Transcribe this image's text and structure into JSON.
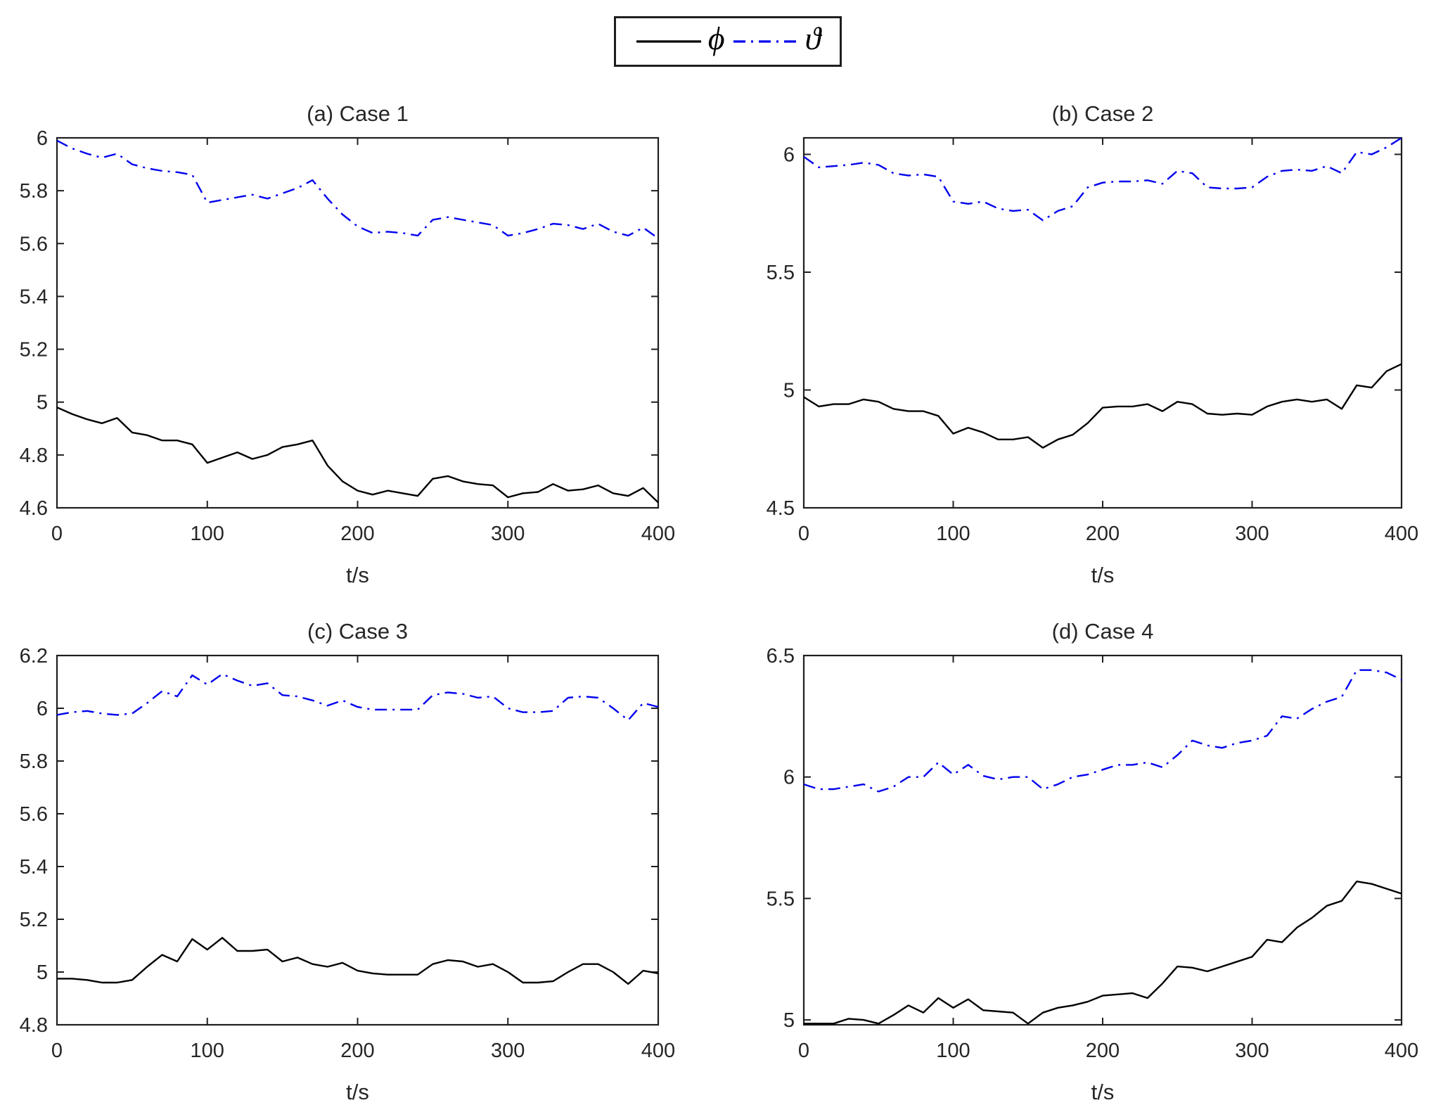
{
  "figure": {
    "kind": "matlab-style multi-panel line figure",
    "background": "#ffffff",
    "axis_color": "#1f1f1f",
    "text_color": "#262626"
  },
  "legend": {
    "phi_label": "ϕ",
    "vartheta_label": "ϑ",
    "phi_color": "#000000",
    "vartheta_color": "#0000ee",
    "phi_style": "solid",
    "vartheta_style": "dash-dot"
  },
  "chart_data": [
    {
      "id": "case1",
      "type": "line",
      "title": "(a) Case 1",
      "xlabel": "t/s",
      "legend_position": "shared-top",
      "grid": false,
      "xlim": [
        0,
        400
      ],
      "ylim": [
        4.6,
        6.0
      ],
      "xticks": [
        "0",
        "100",
        "200",
        "300",
        "400"
      ],
      "xtick_values": [
        0,
        100,
        200,
        300,
        400
      ],
      "yticks": [
        "4.6",
        "4.8",
        "5",
        "5.2",
        "5.4",
        "5.6",
        "5.8",
        "6"
      ],
      "ytick_values": [
        4.6,
        4.8,
        5.0,
        5.2,
        5.4,
        5.6,
        5.8,
        6.0
      ],
      "x": [
        0,
        10,
        20,
        30,
        40,
        50,
        60,
        70,
        80,
        90,
        100,
        110,
        120,
        130,
        140,
        150,
        160,
        170,
        180,
        190,
        200,
        210,
        220,
        230,
        240,
        250,
        260,
        270,
        280,
        290,
        300,
        310,
        320,
        330,
        340,
        350,
        360,
        370,
        380,
        390,
        400
      ],
      "series": [
        {
          "name": "phi",
          "label": "ϕ",
          "color": "#000000",
          "line_style": "solid",
          "values": [
            4.98,
            4.955,
            4.935,
            4.92,
            4.94,
            4.885,
            4.875,
            4.855,
            4.855,
            4.84,
            4.77,
            4.79,
            4.81,
            4.785,
            4.8,
            4.83,
            4.84,
            4.855,
            4.76,
            4.7,
            4.665,
            4.65,
            4.665,
            4.655,
            4.645,
            4.71,
            4.72,
            4.7,
            4.69,
            4.685,
            4.64,
            4.655,
            4.66,
            4.69,
            4.665,
            4.67,
            4.685,
            4.655,
            4.645,
            4.675,
            4.62
          ]
        },
        {
          "name": "vartheta",
          "label": "ϑ",
          "color": "#0000ee",
          "line_style": "dash-dot",
          "values": [
            5.99,
            5.96,
            5.94,
            5.925,
            5.94,
            5.9,
            5.885,
            5.875,
            5.87,
            5.86,
            5.755,
            5.765,
            5.775,
            5.785,
            5.77,
            5.79,
            5.81,
            5.84,
            5.77,
            5.71,
            5.665,
            5.64,
            5.645,
            5.64,
            5.63,
            5.69,
            5.7,
            5.69,
            5.68,
            5.67,
            5.63,
            5.64,
            5.655,
            5.675,
            5.67,
            5.655,
            5.675,
            5.645,
            5.63,
            5.66,
            5.62
          ]
        }
      ]
    },
    {
      "id": "case2",
      "type": "line",
      "title": "(b) Case 2",
      "xlabel": "t/s",
      "legend_position": "shared-top",
      "grid": false,
      "xlim": [
        0,
        400
      ],
      "ylim": [
        4.5,
        6.07
      ],
      "xticks": [
        "0",
        "100",
        "200",
        "300",
        "400"
      ],
      "xtick_values": [
        0,
        100,
        200,
        300,
        400
      ],
      "yticks": [
        "4.5",
        "5",
        "5.5",
        "6"
      ],
      "ytick_values": [
        4.5,
        5.0,
        5.5,
        6.0
      ],
      "x": [
        0,
        10,
        20,
        30,
        40,
        50,
        60,
        70,
        80,
        90,
        100,
        110,
        120,
        130,
        140,
        150,
        160,
        170,
        180,
        190,
        200,
        210,
        220,
        230,
        240,
        250,
        260,
        270,
        280,
        290,
        300,
        310,
        320,
        330,
        340,
        350,
        360,
        370,
        380,
        390,
        400
      ],
      "series": [
        {
          "name": "phi",
          "label": "ϕ",
          "color": "#000000",
          "line_style": "solid",
          "values": [
            4.97,
            4.93,
            4.94,
            4.94,
            4.96,
            4.95,
            4.92,
            4.91,
            4.91,
            4.89,
            4.815,
            4.84,
            4.82,
            4.79,
            4.79,
            4.8,
            4.755,
            4.79,
            4.81,
            4.86,
            4.925,
            4.93,
            4.93,
            4.94,
            4.91,
            4.95,
            4.94,
            4.9,
            4.895,
            4.9,
            4.895,
            4.93,
            4.95,
            4.96,
            4.95,
            4.96,
            4.92,
            5.02,
            5.01,
            5.08,
            5.11
          ]
        },
        {
          "name": "vartheta",
          "label": "ϑ",
          "color": "#0000ee",
          "line_style": "dash-dot",
          "values": [
            5.99,
            5.945,
            5.95,
            5.955,
            5.965,
            5.955,
            5.92,
            5.91,
            5.915,
            5.905,
            5.8,
            5.79,
            5.8,
            5.77,
            5.76,
            5.765,
            5.72,
            5.76,
            5.78,
            5.86,
            5.88,
            5.885,
            5.885,
            5.89,
            5.875,
            5.93,
            5.92,
            5.86,
            5.855,
            5.855,
            5.86,
            5.905,
            5.93,
            5.935,
            5.93,
            5.95,
            5.92,
            6.01,
            6.0,
            6.03,
            6.07
          ]
        }
      ]
    },
    {
      "id": "case3",
      "type": "line",
      "title": "(c) Case 3",
      "xlabel": "t/s",
      "legend_position": "shared-top",
      "grid": false,
      "xlim": [
        0,
        400
      ],
      "ylim": [
        4.8,
        6.2
      ],
      "xticks": [
        "0",
        "100",
        "200",
        "300",
        "400"
      ],
      "xtick_values": [
        0,
        100,
        200,
        300,
        400
      ],
      "yticks": [
        "4.8",
        "5",
        "5.2",
        "5.4",
        "5.6",
        "5.8",
        "6",
        "6.2"
      ],
      "ytick_values": [
        4.8,
        5.0,
        5.2,
        5.4,
        5.6,
        5.8,
        6.0,
        6.2
      ],
      "x": [
        0,
        10,
        20,
        30,
        40,
        50,
        60,
        70,
        80,
        90,
        100,
        110,
        120,
        130,
        140,
        150,
        160,
        170,
        180,
        190,
        200,
        210,
        220,
        230,
        240,
        250,
        260,
        270,
        280,
        290,
        300,
        310,
        320,
        330,
        340,
        350,
        360,
        370,
        380,
        390,
        400
      ],
      "series": [
        {
          "name": "phi",
          "label": "ϕ",
          "color": "#000000",
          "line_style": "solid",
          "values": [
            4.975,
            4.975,
            4.97,
            4.96,
            4.96,
            4.97,
            5.02,
            5.065,
            5.04,
            5.125,
            5.085,
            5.13,
            5.08,
            5.08,
            5.085,
            5.04,
            5.055,
            5.03,
            5.02,
            5.035,
            5.005,
            4.995,
            4.99,
            4.99,
            4.99,
            5.03,
            5.045,
            5.04,
            5.02,
            5.03,
            5.0,
            4.96,
            4.96,
            4.965,
            5.0,
            5.03,
            5.03,
            5.0,
            4.955,
            5.005,
            4.995
          ]
        },
        {
          "name": "vartheta",
          "label": "ϑ",
          "color": "#0000ee",
          "line_style": "dash-dot",
          "values": [
            5.975,
            5.985,
            5.99,
            5.98,
            5.975,
            5.98,
            6.02,
            6.065,
            6.045,
            6.125,
            6.09,
            6.13,
            6.105,
            6.085,
            6.095,
            6.05,
            6.045,
            6.03,
            6.01,
            6.03,
            6.005,
            5.995,
            5.995,
            5.995,
            5.995,
            6.05,
            6.06,
            6.055,
            6.04,
            6.045,
            6.0,
            5.985,
            5.985,
            5.99,
            6.04,
            6.045,
            6.04,
            6.0,
            5.955,
            6.02,
            6.005
          ]
        }
      ]
    },
    {
      "id": "case4",
      "type": "line",
      "title": "(d) Case 4",
      "xlabel": "t/s",
      "legend_position": "shared-top",
      "grid": false,
      "xlim": [
        0,
        400
      ],
      "ylim": [
        4.98,
        6.5
      ],
      "xticks": [
        "0",
        "100",
        "200",
        "300",
        "400"
      ],
      "xtick_values": [
        0,
        100,
        200,
        300,
        400
      ],
      "yticks": [
        "5",
        "5.5",
        "6",
        "6.5"
      ],
      "ytick_values": [
        5.0,
        5.5,
        6.0,
        6.5
      ],
      "x": [
        0,
        10,
        20,
        30,
        40,
        50,
        60,
        70,
        80,
        90,
        100,
        110,
        120,
        130,
        140,
        150,
        160,
        170,
        180,
        190,
        200,
        210,
        220,
        230,
        240,
        250,
        260,
        270,
        280,
        290,
        300,
        310,
        320,
        330,
        340,
        350,
        360,
        370,
        380,
        390,
        400
      ],
      "series": [
        {
          "name": "phi",
          "label": "ϕ",
          "color": "#000000",
          "line_style": "solid",
          "values": [
            4.985,
            4.985,
            4.985,
            5.005,
            5.0,
            4.985,
            5.02,
            5.06,
            5.03,
            5.09,
            5.05,
            5.085,
            5.04,
            5.035,
            5.03,
            4.985,
            5.03,
            5.05,
            5.06,
            5.075,
            5.1,
            5.105,
            5.11,
            5.09,
            5.15,
            5.22,
            5.215,
            5.2,
            5.22,
            5.24,
            5.26,
            5.33,
            5.32,
            5.38,
            5.42,
            5.47,
            5.49,
            5.57,
            5.56,
            5.54,
            5.52
          ]
        },
        {
          "name": "vartheta",
          "label": "ϑ",
          "color": "#0000ee",
          "line_style": "dash-dot",
          "values": [
            5.97,
            5.95,
            5.95,
            5.96,
            5.97,
            5.94,
            5.96,
            6.0,
            6.0,
            6.06,
            6.01,
            6.05,
            6.005,
            5.99,
            6.0,
            6.0,
            5.95,
            5.97,
            6.0,
            6.01,
            6.03,
            6.05,
            6.05,
            6.06,
            6.04,
            6.09,
            6.15,
            6.13,
            6.12,
            6.14,
            6.15,
            6.17,
            6.25,
            6.24,
            6.28,
            6.31,
            6.33,
            6.44,
            6.44,
            6.43,
            6.4
          ]
        }
      ]
    }
  ]
}
